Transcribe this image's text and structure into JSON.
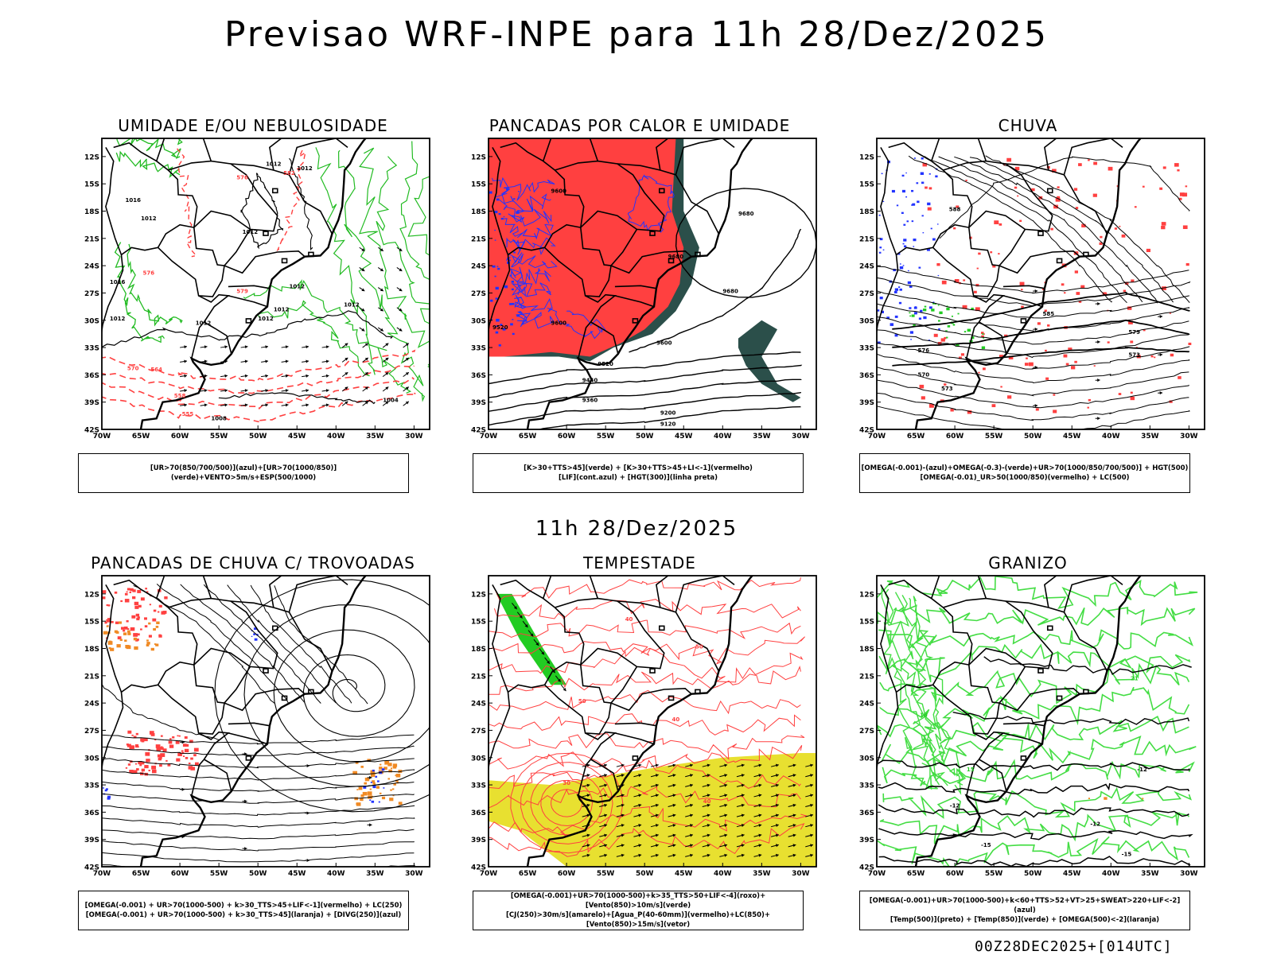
{
  "header": {
    "title": "Previsao WRF-INPE  para 11h 28/Dez/2025",
    "subtitle": "11h 28/Dez/2025",
    "footer": "00Z28DEC2025+[014UTC]"
  },
  "axes": {
    "lat_labels": [
      "12S",
      "15S",
      "18S",
      "21S",
      "24S",
      "27S",
      "30S",
      "33S",
      "36S",
      "39S",
      "42S"
    ],
    "lon_labels": [
      "70W",
      "65W",
      "60W",
      "55W",
      "50W",
      "45W",
      "40W",
      "35W",
      "30W"
    ]
  },
  "panels": [
    {
      "id": "umidade",
      "title": "UMIDADE E/OU NEBULOSIDADE",
      "legend": [
        "[UR>70(850/700/500)](azul)+[UR>70(1000/850)](verde)+VENTO>5m/s+ESP(500/1000)"
      ],
      "contour_labels": [
        "1012",
        "1012",
        "1012",
        "1012",
        "1012",
        "1012",
        "1012",
        "1012",
        "1012",
        "1016",
        "1016",
        "1012",
        "1004",
        "1008",
        "576",
        "576",
        "579",
        "570",
        "564",
        "558",
        "555",
        "582"
      ]
    },
    {
      "id": "pancadas-calor",
      "title": "PANCADAS POR CALOR E UMIDADE",
      "legend": [
        "[K>30+TTS>45](verde) + [K>30+TTS>45+LI<-1](vermelho)",
        "[LIF](cont.azul) + [HGT(300)](linha preta)"
      ],
      "contour_labels": [
        "9600",
        "9680",
        "9680",
        "9680",
        "9600",
        "9600",
        "9520",
        "9440",
        "9360",
        "9200",
        "9120",
        "9520"
      ]
    },
    {
      "id": "chuva",
      "title": "CHUVA",
      "legend": [
        "[OMEGA(-0.001)-(azul)+OMEGA(-0.3)-(verde)+UR>70(1000/850/700/500)] + HGT(500)",
        "[OMEGA(-0.01)_UR>50(1000/850)(vermelho) + LC(500)"
      ],
      "contour_labels": [
        "588",
        "585",
        "579",
        "576",
        "573",
        "570",
        "573"
      ]
    },
    {
      "id": "trovoadas",
      "title": "PANCADAS DE CHUVA C/ TROVOADAS",
      "legend": [
        "[OMEGA(-0.001) + UR>70(1000-500) + k>30_TTS>45+LIF<-1](vermelho) + LC(250)",
        "[OMEGA(-0.001) + UR>70(1000-500) + k>30_TTS>45](laranja) + [DIVG(250)](azul)"
      ],
      "contour_labels": []
    },
    {
      "id": "tempestade",
      "title": "TEMPESTADE",
      "legend": [
        "[OMEGA(-0.001)+UR>70(1000-500)+k>35_TTS>50+LIF<-4](roxo)+[Vento(850)>10m/s](verde)",
        "[CJ(250)>30m/s](amarelo)+[Agua_P(40-60mm)](vermelho)+LC(850)+[Vento(850)>15m/s](vetor)"
      ],
      "contour_labels": [
        "40",
        "50",
        "40",
        "50",
        "30",
        "40"
      ]
    },
    {
      "id": "granizo",
      "title": "GRANIZO",
      "legend": [
        "[OMEGA(-0.001)+UR>70(1000-500)+k<60+TTS>52+VT>25+SWEAT>220+LIF<-2](azul)",
        "[Temp(500)](preto) + [Temp(850)](verde) + [OMEGA(500)<-2](laranja)"
      ],
      "contour_labels": [
        "-12",
        "-12",
        "-15",
        "-15",
        "-12",
        "21",
        "18",
        "15"
      ]
    }
  ],
  "colors": {
    "frame": "#000000",
    "humidity_blue": "#b4b0f0",
    "humidity_green": "#22bb22",
    "red": "#ff4040",
    "dark_teal": "#2b4f4a",
    "blue": "#2233ff",
    "orange": "#f08a24",
    "yellow": "#e8e030",
    "green": "#22cc22",
    "lightgreen": "#44dd44"
  }
}
